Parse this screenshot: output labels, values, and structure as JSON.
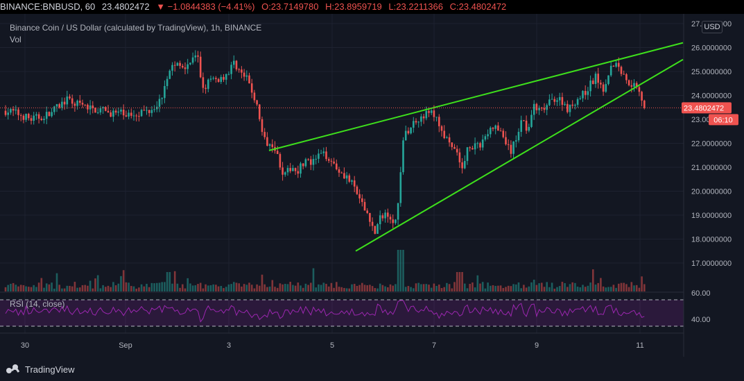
{
  "header": {
    "symbol": "BINANCE:BNBUSD, 60",
    "last": "23.4802472",
    "change": "▼ −1.0844383 (−4.41%)",
    "open": "O:23.7149780",
    "high": "H:23.8959719",
    "low": "L:23.2211366",
    "close": "C:23.4802472"
  },
  "legend": {
    "title": "Binance Coin / US Dollar (calculated by TradingView), 1h, BINANCE",
    "volume": "Vol",
    "rsi": "RSI (14, close)"
  },
  "currency": "USD",
  "price_label": "23.4802472",
  "countdown": "06:10",
  "brand": "TradingView",
  "colors": {
    "up": "#26a69a",
    "down": "#ef5350",
    "trendline": "#3ee01c",
    "rsi": "#9c27b0"
  },
  "chart_data": {
    "type": "candlestick",
    "x_ticks": [
      "30",
      "Sep",
      "3",
      "5",
      "7",
      "9",
      "11"
    ],
    "y_ticks": [
      "27.0000000",
      "26.0000000",
      "25.0000000",
      "24.0000000",
      "23.0000000",
      "22.0000000",
      "21.0000000",
      "20.0000000",
      "19.0000000",
      "18.0000000",
      "17.0000000"
    ],
    "ylim": [
      16.7,
      27.4
    ],
    "last_price": 23.4802,
    "path": [
      [
        0,
        23.4
      ],
      [
        20,
        23.3
      ],
      [
        45,
        23.0
      ],
      [
        70,
        23.2
      ],
      [
        95,
        23.8
      ],
      [
        125,
        23.5
      ],
      [
        155,
        23.3
      ],
      [
        185,
        23.2
      ],
      [
        215,
        23.4
      ],
      [
        232,
        23.8
      ],
      [
        240,
        24.8
      ],
      [
        250,
        25.3
      ],
      [
        262,
        25.2
      ],
      [
        275,
        25.4
      ],
      [
        285,
        25.6
      ],
      [
        292,
        24.3
      ],
      [
        302,
        24.6
      ],
      [
        318,
        24.7
      ],
      [
        330,
        25.0
      ],
      [
        338,
        25.4
      ],
      [
        348,
        24.9
      ],
      [
        358,
        24.6
      ],
      [
        368,
        23.8
      ],
      [
        375,
        23.0
      ],
      [
        380,
        22.1
      ],
      [
        395,
        22.0
      ],
      [
        402,
        21.3
      ],
      [
        410,
        20.6
      ],
      [
        420,
        21.0
      ],
      [
        430,
        20.9
      ],
      [
        440,
        21.3
      ],
      [
        450,
        21.1
      ],
      [
        460,
        21.5
      ],
      [
        472,
        21.5
      ],
      [
        485,
        21.0
      ],
      [
        500,
        20.6
      ],
      [
        512,
        20.1
      ],
      [
        522,
        19.4
      ],
      [
        532,
        19.0
      ],
      [
        540,
        18.2
      ],
      [
        550,
        19.0
      ],
      [
        560,
        19.1
      ],
      [
        570,
        18.7
      ],
      [
        575,
        19.5
      ],
      [
        580,
        22.1
      ],
      [
        590,
        22.6
      ],
      [
        600,
        23.0
      ],
      [
        612,
        23.2
      ],
      [
        622,
        23.3
      ],
      [
        632,
        22.9
      ],
      [
        642,
        22.2
      ],
      [
        650,
        21.8
      ],
      [
        660,
        21.6
      ],
      [
        667,
        20.8
      ],
      [
        675,
        22.0
      ],
      [
        688,
        21.8
      ],
      [
        700,
        22.3
      ],
      [
        712,
        22.7
      ],
      [
        724,
        22.4
      ],
      [
        736,
        21.6
      ],
      [
        745,
        22.2
      ],
      [
        752,
        23.1
      ],
      [
        760,
        22.6
      ],
      [
        770,
        23.5
      ],
      [
        780,
        23.3
      ],
      [
        790,
        23.6
      ],
      [
        800,
        23.9
      ],
      [
        810,
        23.8
      ],
      [
        820,
        23.4
      ],
      [
        830,
        23.8
      ],
      [
        840,
        24.0
      ],
      [
        850,
        24.4
      ],
      [
        860,
        24.8
      ],
      [
        870,
        24.3
      ],
      [
        878,
        25.0
      ],
      [
        886,
        25.4
      ],
      [
        892,
        25.2
      ],
      [
        900,
        24.8
      ],
      [
        910,
        24.5
      ],
      [
        920,
        24.4
      ],
      [
        930,
        23.48
      ]
    ],
    "trendlines": [
      {
        "from": [
          388,
          21.7
        ],
        "to": [
          985,
          26.2
        ]
      },
      {
        "from": [
          513,
          17.5
        ],
        "to": [
          985,
          25.5
        ]
      }
    ],
    "rsi": {
      "levels": [
        70,
        30
      ],
      "tick_labels": [
        "60.00",
        "40.00"
      ]
    }
  }
}
